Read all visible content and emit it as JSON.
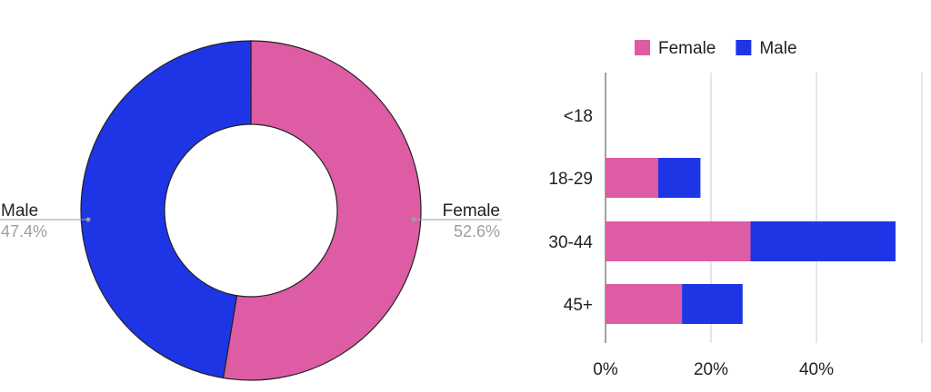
{
  "colors": {
    "female": "#dd5ca4",
    "male": "#1e35e6",
    "grid": "#cccccc",
    "outline": "#222222"
  },
  "chart_data": [
    {
      "type": "pie",
      "variant": "donut",
      "slices": [
        {
          "label": "Female",
          "value": 52.6,
          "display": "52.6%",
          "color": "#dd5ca4"
        },
        {
          "label": "Male",
          "value": 47.4,
          "display": "47.4%",
          "color": "#1e35e6"
        }
      ]
    },
    {
      "type": "bar",
      "orientation": "horizontal",
      "stacked": true,
      "categories": [
        "<18",
        "18-29",
        "30-44",
        "45+"
      ],
      "series": [
        {
          "name": "Female",
          "color": "#dd5ca4",
          "values": [
            0,
            10,
            27.5,
            14.5
          ]
        },
        {
          "name": "Male",
          "color": "#1e35e6",
          "values": [
            0,
            8,
            27.5,
            11.5
          ]
        }
      ],
      "xticks": [
        "0%",
        "20%",
        "40%"
      ],
      "xlim": [
        0,
        60
      ],
      "grid": true,
      "legend": "top"
    }
  ]
}
